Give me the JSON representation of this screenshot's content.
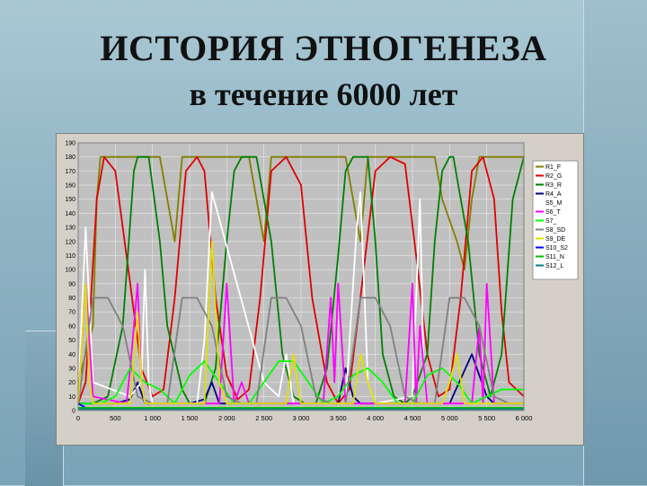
{
  "slide": {
    "title": "ИСТОРИЯ ЭТНОГЕНЕЗА",
    "subtitle": "в течение 6000 лет"
  },
  "chart_data": {
    "type": "line",
    "xlim": [
      0,
      6000
    ],
    "ylim": [
      0,
      190
    ],
    "x_ticks": [
      0,
      500,
      1000,
      1500,
      2000,
      2500,
      3000,
      3500,
      4000,
      4500,
      5000,
      5500,
      6000
    ],
    "x_tick_labels": [
      "0",
      "500",
      "1 000",
      "1 500",
      "2 000",
      "2 500",
      "3 000",
      "3 500",
      "4 000",
      "4 500",
      "5 000",
      "5 500",
      "6 000"
    ],
    "y_ticks": [
      0,
      10,
      20,
      30,
      40,
      50,
      60,
      70,
      80,
      90,
      100,
      110,
      120,
      130,
      140,
      150,
      160,
      170,
      180,
      190
    ],
    "y_tick_labels": [
      "0",
      "10",
      "20",
      "30",
      "40",
      "50",
      "60",
      "70",
      "80",
      "90",
      "100",
      "110",
      "120",
      "130",
      "140",
      "150",
      "160",
      "170",
      "180",
      "190"
    ],
    "grid": true,
    "plot_background": "#c0c0c0",
    "legend_position": "right",
    "series": [
      {
        "name": "R1_F",
        "color": "#808000",
        "x": [
          0,
          100,
          200,
          250,
          300,
          1100,
          1200,
          1300,
          1400,
          2300,
          2400,
          2500,
          2600,
          3600,
          3700,
          3800,
          3900,
          4800,
          4900,
          5100,
          5200,
          5300,
          5400,
          6000
        ],
        "y": [
          20,
          40,
          60,
          150,
          180,
          180,
          150,
          120,
          180,
          180,
          150,
          120,
          180,
          180,
          150,
          120,
          180,
          180,
          150,
          120,
          100,
          150,
          180,
          180
        ]
      },
      {
        "name": "R2_G",
        "color": "#e00000",
        "x": [
          0,
          100,
          150,
          250,
          350,
          500,
          700,
          850,
          1000,
          1150,
          1300,
          1450,
          1600,
          1700,
          1850,
          2000,
          2150,
          2300,
          2450,
          2600,
          2800,
          3000,
          3150,
          3350,
          3500,
          3650,
          3800,
          4000,
          4200,
          4400,
          4550,
          4700,
          4850,
          5000,
          5150,
          5300,
          5450,
          5600,
          5700,
          5800,
          6000
        ],
        "y": [
          5,
          20,
          60,
          150,
          180,
          170,
          90,
          30,
          10,
          15,
          80,
          170,
          180,
          170,
          80,
          25,
          8,
          15,
          80,
          170,
          180,
          160,
          80,
          20,
          5,
          15,
          80,
          170,
          180,
          175,
          110,
          40,
          10,
          15,
          80,
          170,
          180,
          150,
          70,
          20,
          10
        ]
      },
      {
        "name": "R3_R",
        "color": "#008000",
        "x": [
          0,
          200,
          400,
          600,
          750,
          800,
          950,
          1100,
          1200,
          1400,
          1500,
          1700,
          1850,
          2000,
          2100,
          2200,
          2400,
          2600,
          2750,
          2900,
          3050,
          3200,
          3350,
          3500,
          3600,
          3700,
          3900,
          4000,
          4100,
          4250,
          4400,
          4500,
          4700,
          4800,
          4900,
          5000,
          5050,
          5250,
          5400,
          5550,
          5700,
          5850,
          6000
        ],
        "y": [
          5,
          5,
          10,
          60,
          170,
          180,
          180,
          120,
          60,
          15,
          5,
          5,
          30,
          120,
          170,
          180,
          180,
          120,
          40,
          10,
          5,
          5,
          30,
          110,
          170,
          180,
          180,
          120,
          40,
          10,
          5,
          10,
          40,
          120,
          170,
          180,
          180,
          120,
          40,
          10,
          40,
          150,
          180
        ]
      },
      {
        "name": "R4_A",
        "color": "#000080",
        "x": [
          0,
          500,
          700,
          800,
          900,
          1500,
          1700,
          1800,
          1900,
          2500,
          3000,
          3500,
          3600,
          3700,
          3800,
          4000,
          4500,
          5000,
          5300,
          5500,
          5600,
          6000
        ],
        "y": [
          5,
          5,
          8,
          20,
          5,
          5,
          8,
          20,
          5,
          5,
          5,
          5,
          30,
          10,
          5,
          5,
          5,
          5,
          40,
          10,
          5,
          5
        ]
      },
      {
        "name": "S5_M",
        "color": "#ffffff",
        "x": [
          0,
          100,
          200,
          700,
          850,
          900,
          950,
          1000,
          1100,
          1600,
          1700,
          1800,
          2500,
          2700,
          2800,
          2900,
          3600,
          3750,
          3800,
          3900,
          4000,
          4500,
          4600,
          4650,
          4700,
          5000
        ],
        "y": [
          10,
          130,
          20,
          10,
          20,
          100,
          20,
          5,
          5,
          5,
          50,
          155,
          20,
          10,
          40,
          5,
          5,
          130,
          155,
          20,
          5,
          10,
          150,
          30,
          5,
          5
        ]
      },
      {
        "name": "S6_T",
        "color": "#ff00ff",
        "x": [
          0,
          100,
          200,
          650,
          700,
          800,
          850,
          900,
          1000,
          1100,
          1900,
          2000,
          2100,
          2200,
          2300,
          2400,
          3300,
          3400,
          3450,
          3500,
          3600,
          3700,
          4400,
          4500,
          4550,
          4600,
          4700,
          4800,
          5300,
          5400,
          5450,
          5500,
          5600,
          6000
        ],
        "y": [
          5,
          90,
          10,
          5,
          30,
          90,
          20,
          5,
          5,
          5,
          5,
          90,
          5,
          20,
          5,
          5,
          5,
          80,
          20,
          90,
          5,
          5,
          5,
          90,
          5,
          60,
          5,
          5,
          5,
          60,
          5,
          90,
          5,
          5
        ]
      },
      {
        "name": "S7_",
        "color": "#00ff00",
        "x": [
          0,
          300,
          500,
          700,
          900,
          1100,
          1300,
          1500,
          1700,
          1900,
          2100,
          2300,
          2500,
          2700,
          2900,
          3100,
          3300,
          3500,
          3700,
          3900,
          4100,
          4300,
          4500,
          4700,
          4900,
          5100,
          5300,
          5500,
          5700,
          6000
        ],
        "y": [
          5,
          5,
          10,
          30,
          20,
          15,
          5,
          25,
          35,
          20,
          5,
          5,
          20,
          35,
          35,
          20,
          5,
          10,
          25,
          30,
          20,
          5,
          5,
          25,
          30,
          20,
          5,
          10,
          15,
          15
        ]
      },
      {
        "name": "S8_SD",
        "color": "#808080",
        "x": [
          0,
          200,
          400,
          600,
          800,
          1000,
          1200,
          1400,
          1600,
          1800,
          2000,
          2200,
          2400,
          2600,
          2800,
          3000,
          3200,
          3400,
          3600,
          3800,
          4000,
          4200,
          4400,
          4600,
          4800,
          5000,
          5200,
          5400,
          5600,
          5800,
          6000
        ],
        "y": [
          5,
          80,
          80,
          60,
          10,
          5,
          5,
          80,
          80,
          60,
          10,
          5,
          5,
          80,
          80,
          60,
          10,
          5,
          5,
          80,
          80,
          60,
          10,
          5,
          5,
          80,
          80,
          60,
          10,
          5,
          5
        ]
      },
      {
        "name": "S9_DE",
        "color": "#e0e000",
        "x": [
          0,
          100,
          150,
          200,
          700,
          800,
          850,
          900,
          1000,
          1700,
          1800,
          1900,
          2000,
          2800,
          2900,
          2950,
          3000,
          3700,
          3800,
          3900,
          4000,
          4900,
          5000,
          5100,
          5200,
          6000
        ],
        "y": [
          5,
          90,
          20,
          5,
          5,
          70,
          20,
          5,
          5,
          5,
          120,
          20,
          5,
          5,
          40,
          20,
          5,
          5,
          40,
          20,
          5,
          5,
          20,
          40,
          5,
          5
        ]
      },
      {
        "name": "S10_S2",
        "color": "#0000ff",
        "x": [
          0,
          100,
          300,
          500,
          900,
          1000,
          1100,
          1300,
          1800,
          2000,
          2200,
          2400,
          2800,
          3000,
          3200,
          3400,
          3800,
          4000,
          4200,
          4400,
          4800,
          5000,
          5200,
          5400,
          6000
        ],
        "y": [
          5,
          2,
          2,
          2,
          2,
          2,
          2,
          2,
          2,
          2,
          2,
          2,
          2,
          2,
          2,
          2,
          2,
          2,
          2,
          2,
          2,
          2,
          2,
          2,
          2
        ]
      },
      {
        "name": "S11_N",
        "color": "#00c000",
        "x": [
          0,
          500,
          1000,
          1500,
          2000,
          2500,
          3000,
          3500,
          4000,
          4500,
          5000,
          5500,
          6000
        ],
        "y": [
          2,
          2,
          2,
          2,
          2,
          2,
          2,
          2,
          2,
          2,
          2,
          2,
          2
        ]
      },
      {
        "name": "S12_L",
        "color": "#008080",
        "x": [
          0,
          500,
          1000,
          1500,
          2000,
          2500,
          3000,
          3500,
          4000,
          4500,
          5000,
          5500,
          6000
        ],
        "y": [
          1,
          1,
          1,
          1,
          1,
          1,
          1,
          1,
          1,
          1,
          1,
          1,
          1
        ]
      }
    ]
  }
}
